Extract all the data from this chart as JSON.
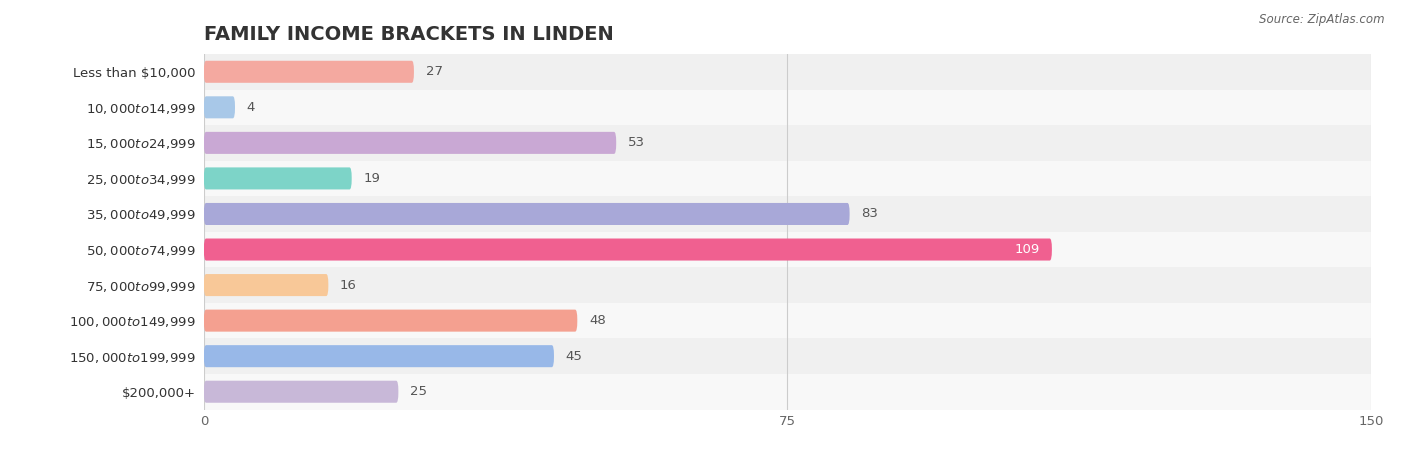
{
  "title": "FAMILY INCOME BRACKETS IN LINDEN",
  "source": "Source: ZipAtlas.com",
  "categories": [
    "Less than $10,000",
    "$10,000 to $14,999",
    "$15,000 to $24,999",
    "$25,000 to $34,999",
    "$35,000 to $49,999",
    "$50,000 to $74,999",
    "$75,000 to $99,999",
    "$100,000 to $149,999",
    "$150,000 to $199,999",
    "$200,000+"
  ],
  "values": [
    27,
    4,
    53,
    19,
    83,
    109,
    16,
    48,
    45,
    25
  ],
  "bar_colors": [
    "#F4A9A0",
    "#A8C8E8",
    "#C9A8D4",
    "#7DD4C8",
    "#A8A8D8",
    "#F06090",
    "#F8C898",
    "#F4A090",
    "#98B8E8",
    "#C8B8D8"
  ],
  "xlim": [
    0,
    150
  ],
  "xticks": [
    0,
    75,
    150
  ],
  "background_color": "#ffffff",
  "title_fontsize": 14,
  "label_fontsize": 9.5,
  "value_fontsize": 9.5
}
